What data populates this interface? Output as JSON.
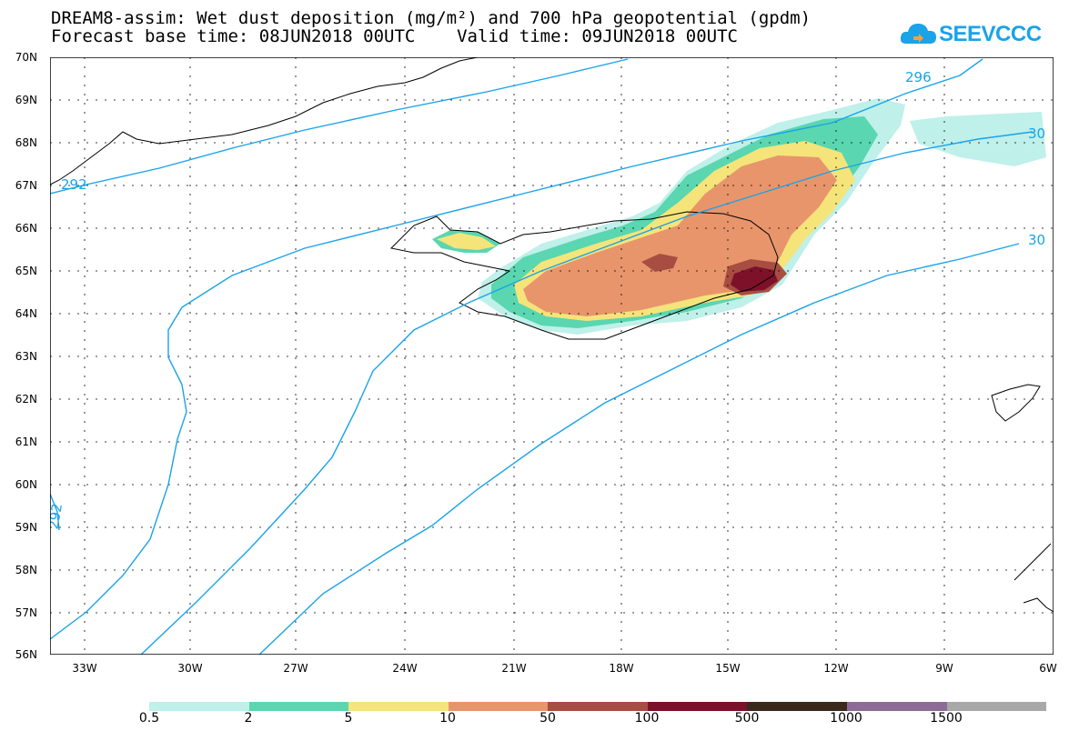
{
  "title_line1": "DREAM8-assim: Wet dust deposition (mg/m²) and 700 hPa geopotential (gpdm)",
  "title_line2": "Forecast base time: 08JUN2018 00UTC    Valid time: 09JUN2018 00UTC",
  "logo_text": "SEEVCCC",
  "lat_labels": [
    "70N",
    "69N",
    "68N",
    "67N",
    "66N",
    "65N",
    "64N",
    "63N",
    "62N",
    "61N",
    "60N",
    "59N",
    "58N",
    "57N",
    "56N"
  ],
  "lon_labels": [
    "33W",
    "30W",
    "27W",
    "24W",
    "21W",
    "18W",
    "15W",
    "12W",
    "9W",
    "6W"
  ],
  "legend": {
    "labels": [
      "0.5",
      "2",
      "5",
      "10",
      "50",
      "100",
      "500",
      "1000",
      "1500"
    ],
    "colors": [
      "#bff0ea",
      "#5ad6b0",
      "#f5e47a",
      "#e8956c",
      "#a84d42",
      "#7d1129",
      "#3a2a1e",
      "#8e6a97",
      "#a8a8a8"
    ]
  },
  "contour_labels": [
    "292",
    "296",
    "30",
    "30",
    "292"
  ],
  "colors": {
    "contour": "#1aa3e8",
    "coast": "#000000"
  }
}
